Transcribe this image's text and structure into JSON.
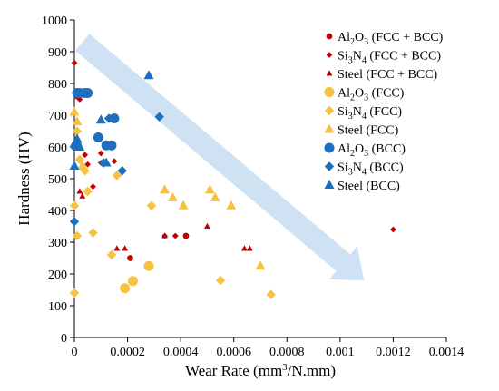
{
  "chart_data": {
    "type": "scatter",
    "title": "",
    "xlabel": {
      "prefix": "Wear Rate (mm",
      "sup": "3",
      "suffix": "/N.mm)"
    },
    "ylabel": "Hardness (HV)",
    "xlim": [
      0,
      0.0014
    ],
    "ylim": [
      0,
      1000
    ],
    "xticks": [
      "0",
      "0.0002",
      "0.0004",
      "0.0006",
      "0.0008",
      "0.001",
      "0.0012",
      "0.0014"
    ],
    "yticks": [
      "0",
      "100",
      "200",
      "300",
      "400",
      "500",
      "600",
      "700",
      "800",
      "900",
      "1000"
    ],
    "grid": false,
    "legend_position": "right",
    "trend_arrow": {
      "from": [
        3e-05,
        930
      ],
      "to": [
        0.00109,
        180
      ],
      "color": "#cfe2f3"
    },
    "series": [
      {
        "legend": [
          {
            "t": "Al"
          },
          {
            "t": "2",
            "sub": true
          },
          {
            "t": "O"
          },
          {
            "t": "3",
            "sub": true
          },
          {
            "t": " (FCC + BCC)"
          }
        ],
        "marker": "circle",
        "size": "small",
        "color": "#c00000",
        "points": [
          [
            1e-05,
            760
          ],
          [
            0.00021,
            250
          ],
          [
            0.00042,
            320
          ]
        ]
      },
      {
        "legend": [
          {
            "t": "Si"
          },
          {
            "t": "3",
            "sub": true
          },
          {
            "t": "N"
          },
          {
            "t": "4",
            "sub": true
          },
          {
            "t": " (FCC + BCC)"
          }
        ],
        "marker": "diamond",
        "size": "small",
        "color": "#c00000",
        "points": [
          [
            0.0,
            865
          ],
          [
            2e-05,
            750
          ],
          [
            4e-05,
            575
          ],
          [
            5e-05,
            545
          ],
          [
            7e-05,
            475
          ],
          [
            0.0001,
            550
          ],
          [
            0.0001,
            580
          ],
          [
            0.00015,
            555
          ],
          [
            0.00034,
            320
          ],
          [
            0.00038,
            320
          ],
          [
            0.0012,
            340
          ]
        ]
      },
      {
        "legend": [
          {
            "t": "Steel (FCC + BCC)"
          }
        ],
        "marker": "triangle",
        "size": "small",
        "color": "#c00000",
        "points": [
          [
            2e-05,
            460
          ],
          [
            3e-05,
            445
          ],
          [
            0.00016,
            280
          ],
          [
            0.00019,
            280
          ],
          [
            0.00034,
            320
          ],
          [
            0.0005,
            350
          ],
          [
            0.00064,
            280
          ],
          [
            0.00066,
            280
          ]
        ]
      },
      {
        "legend": [
          {
            "t": "Al"
          },
          {
            "t": "2",
            "sub": true
          },
          {
            "t": "O"
          },
          {
            "t": "3",
            "sub": true
          },
          {
            "t": " (FCC)"
          }
        ],
        "marker": "circle",
        "size": "large",
        "color": "#f5c242",
        "points": [
          [
            0.00019,
            155
          ],
          [
            0.00022,
            178
          ],
          [
            0.00028,
            225
          ]
        ]
      },
      {
        "legend": [
          {
            "t": "Si"
          },
          {
            "t": "3",
            "sub": true
          },
          {
            "t": "N"
          },
          {
            "t": "4",
            "sub": true
          },
          {
            "t": " (FCC)"
          }
        ],
        "marker": "diamond",
        "size": "large",
        "color": "#f5c242",
        "points": [
          [
            0.0,
            140
          ],
          [
            0.0,
            415
          ],
          [
            1e-05,
            320
          ],
          [
            1e-05,
            650
          ],
          [
            2e-05,
            560
          ],
          [
            4e-05,
            525
          ],
          [
            5e-05,
            460
          ],
          [
            7e-05,
            330
          ],
          [
            0.00014,
            260
          ],
          [
            0.00016,
            510
          ],
          [
            0.00019,
            155
          ],
          [
            0.00029,
            415
          ],
          [
            0.00055,
            180
          ],
          [
            0.00074,
            135
          ]
        ]
      },
      {
        "legend": [
          {
            "t": "Steel (FCC)"
          }
        ],
        "marker": "triangle",
        "size": "large",
        "color": "#f5c242",
        "points": [
          [
            0.0,
            710
          ],
          [
            1e-05,
            680
          ],
          [
            3e-05,
            540
          ],
          [
            0.00034,
            465
          ],
          [
            0.00037,
            440
          ],
          [
            0.00041,
            415
          ],
          [
            0.00051,
            465
          ],
          [
            0.00053,
            440
          ],
          [
            0.00059,
            415
          ],
          [
            0.0007,
            225
          ]
        ]
      },
      {
        "legend": [
          {
            "t": "Al"
          },
          {
            "t": "2",
            "sub": true
          },
          {
            "t": "O"
          },
          {
            "t": "3",
            "sub": true
          },
          {
            "t": " (BCC)"
          }
        ],
        "marker": "circle",
        "size": "large",
        "color": "#1f6fbf",
        "points": [
          [
            1e-05,
            770
          ],
          [
            2e-05,
            770
          ],
          [
            4e-05,
            770
          ],
          [
            5e-05,
            770
          ],
          [
            9e-05,
            630
          ],
          [
            0.00012,
            605
          ],
          [
            0.00014,
            605
          ],
          [
            0.00015,
            690
          ]
        ]
      },
      {
        "legend": [
          {
            "t": "Si"
          },
          {
            "t": "3",
            "sub": true
          },
          {
            "t": "N"
          },
          {
            "t": "4",
            "sub": true
          },
          {
            "t": " (BCC)"
          }
        ],
        "marker": "diamond",
        "size": "large",
        "color": "#1f6fbf",
        "points": [
          [
            0.0,
            365
          ],
          [
            0.0,
            600
          ],
          [
            1e-05,
            610
          ],
          [
            0.00011,
            550
          ],
          [
            0.00013,
            690
          ],
          [
            0.00018,
            525
          ],
          [
            0.00032,
            695
          ]
        ]
      },
      {
        "legend": [
          {
            "t": "Steel (BCC)"
          }
        ],
        "marker": "triangle",
        "size": "large",
        "color": "#1f6fbf",
        "points": [
          [
            0.0,
            610
          ],
          [
            0.0,
            540
          ],
          [
            1e-05,
            625
          ],
          [
            2e-05,
            600
          ],
          [
            0.0001,
            685
          ],
          [
            0.00012,
            550
          ],
          [
            0.00028,
            825
          ]
        ]
      }
    ]
  }
}
